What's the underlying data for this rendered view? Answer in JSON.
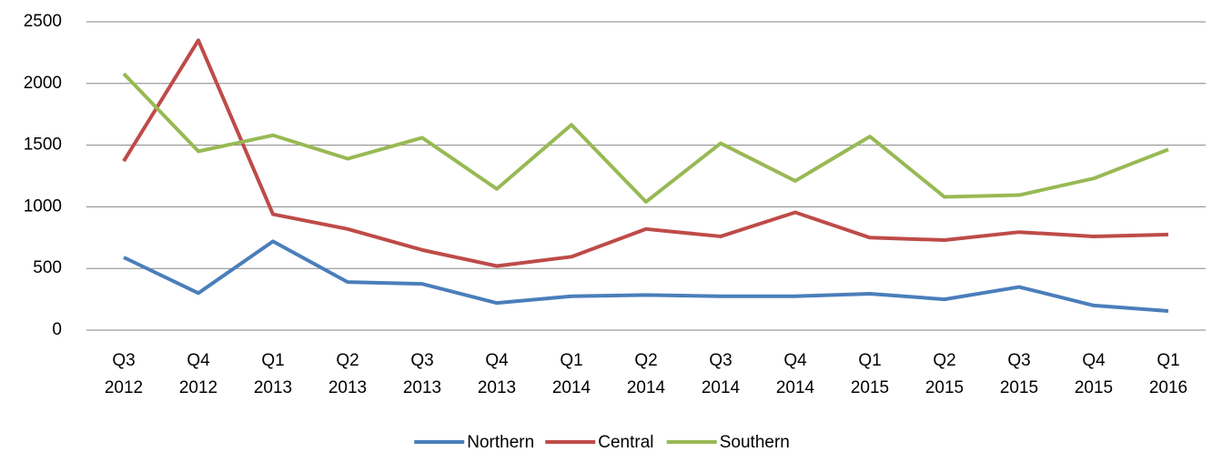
{
  "chart_data": {
    "type": "line",
    "categories": [
      "Q3 2012",
      "Q4 2012",
      "Q1 2013",
      "Q2 2013",
      "Q3 2013",
      "Q4 2013",
      "Q1 2014",
      "Q2 2014",
      "Q3 2014",
      "Q4 2014",
      "Q1 2015",
      "Q2 2015",
      "Q3 2015",
      "Q4 2015",
      "Q1 2016"
    ],
    "series": [
      {
        "name": "Northern",
        "color": "#4a7ebb",
        "values": [
          590,
          300,
          720,
          390,
          375,
          220,
          275,
          285,
          275,
          275,
          295,
          250,
          350,
          200,
          155
        ]
      },
      {
        "name": "Central",
        "color": "#be4b48",
        "values": [
          1370,
          2350,
          940,
          820,
          650,
          520,
          595,
          820,
          760,
          955,
          750,
          730,
          795,
          760,
          775
        ]
      },
      {
        "name": "Southern",
        "color": "#98b954",
        "values": [
          2080,
          1450,
          1580,
          1390,
          1560,
          1145,
          1665,
          1040,
          1515,
          1210,
          1570,
          1080,
          1095,
          1230,
          1465
        ]
      }
    ],
    "ylim": [
      0,
      2500
    ],
    "yticks": [
      0,
      500,
      1000,
      1500,
      2000,
      2500
    ],
    "grid": true,
    "legend": "bottom"
  }
}
